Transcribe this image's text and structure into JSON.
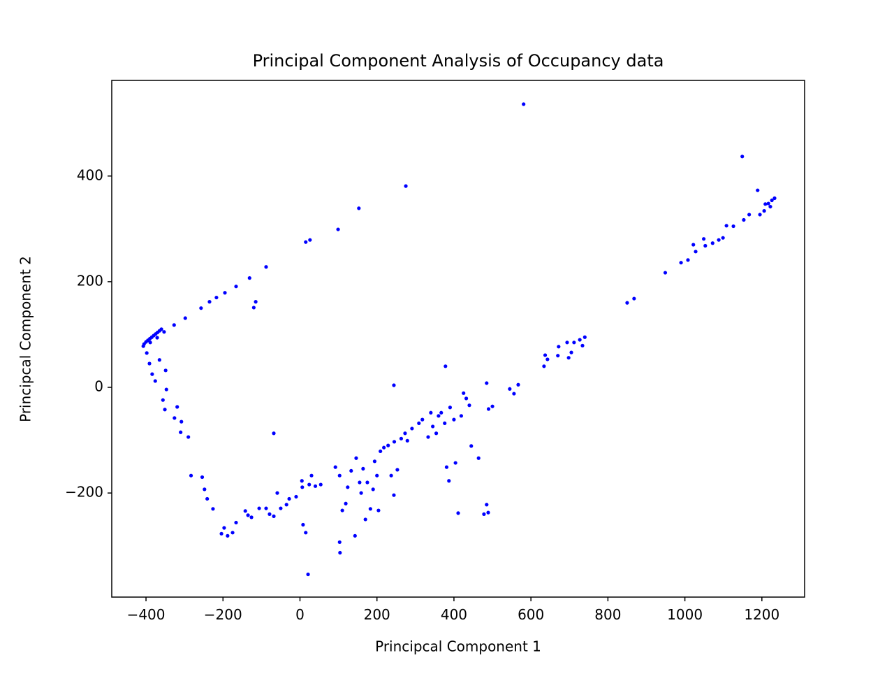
{
  "chart_data": {
    "type": "scatter",
    "title": "Principal Component Analysis of Occupancy data",
    "xlabel": "Principcal Component 1",
    "ylabel": "Principcal Component 2",
    "color": "#0000ff",
    "xlim": [
      -489,
      1311
    ],
    "ylim": [
      -397,
      581
    ],
    "xticks": [
      {
        "value": -400,
        "label": "−400"
      },
      {
        "value": -200,
        "label": "−200"
      },
      0,
      200,
      400,
      600,
      800,
      1000,
      1200
    ],
    "yticks": [
      {
        "value": -200,
        "label": "−200"
      },
      0,
      200,
      400
    ],
    "x": [
      581,
      1149,
      275,
      153,
      99,
      26,
      15,
      -88,
      -131,
      -115,
      -120,
      -166,
      -195,
      -217,
      -235,
      -257,
      -298,
      -327,
      -353,
      -371,
      -389,
      -405,
      -400,
      -395,
      -390,
      -385,
      -380,
      -375,
      -370,
      -365,
      -360,
      -407,
      -398,
      -391,
      -384,
      -376,
      -365,
      -349,
      -347,
      -356,
      -351,
      -326,
      -319,
      -308,
      -310,
      -290,
      -283,
      -254,
      -248,
      -241,
      -226,
      -204,
      -197,
      -188,
      -175,
      -166,
      -135,
      -142,
      -126,
      -106,
      -88,
      -79,
      -68,
      -68,
      -59,
      -50,
      -35,
      -28,
      -10,
      5,
      6,
      24,
      30,
      40,
      54,
      8,
      15,
      21,
      103,
      104,
      143,
      92,
      103,
      110,
      119,
      124,
      133,
      146,
      155,
      159,
      164,
      170,
      175,
      183,
      190,
      194,
      200,
      204,
      209,
      218,
      229,
      237,
      244,
      253,
      245,
      263,
      273,
      279,
      291,
      309,
      318,
      333,
      340,
      345,
      354,
      360,
      367,
      376,
      381,
      390,
      387,
      400,
      404,
      411,
      419,
      425,
      432,
      440,
      445,
      464,
      378,
      485,
      485,
      478,
      489,
      490,
      500,
      545,
      556,
      567,
      244,
      634,
      637,
      643,
      672,
      670,
      694,
      698,
      705,
      712,
      727,
      734,
      740,
      850,
      868,
      949,
      990,
      1008,
      1022,
      1028,
      1049,
      1053,
      1072,
      1088,
      1099,
      1108,
      1126,
      1153,
      1167,
      1189,
      1195,
      1206,
      1209,
      1217,
      1222,
      1226,
      1233
    ],
    "values": [
      536,
      437,
      381,
      339,
      299,
      279,
      275,
      228,
      207,
      162,
      151,
      191,
      179,
      170,
      162,
      150,
      131,
      118,
      105,
      94,
      85,
      82,
      86,
      89,
      92,
      95,
      98,
      101,
      104,
      107,
      110,
      78,
      65,
      45,
      25,
      12,
      52,
      32,
      -4,
      -24,
      -42,
      -58,
      -37,
      -65,
      -85,
      -94,
      -167,
      -170,
      -193,
      -211,
      -230,
      -277,
      -266,
      -281,
      -275,
      -256,
      -242,
      -234,
      -246,
      -229,
      -229,
      -240,
      -244,
      -87,
      -200,
      -229,
      -222,
      -211,
      -207,
      -177,
      -189,
      -184,
      -167,
      -187,
      -184,
      -260,
      -275,
      -354,
      -293,
      -313,
      -281,
      -151,
      -167,
      -233,
      -220,
      -189,
      -158,
      -134,
      -180,
      -200,
      -154,
      -250,
      -180,
      -230,
      -193,
      -140,
      -167,
      -233,
      -121,
      -114,
      -110,
      -167,
      -204,
      -156,
      -103,
      -97,
      -87,
      -101,
      -78,
      -68,
      -61,
      -94,
      -48,
      -74,
      -87,
      -54,
      -48,
      -68,
      -151,
      -38,
      -177,
      -61,
      -143,
      -238,
      -54,
      -11,
      -21,
      -34,
      -111,
      -134,
      40,
      8,
      -222,
      -240,
      -237,
      -41,
      -36,
      -3,
      -12,
      5,
      4,
      40,
      61,
      53,
      77,
      60,
      85,
      56,
      66,
      85,
      90,
      79,
      95,
      160,
      168,
      217,
      236,
      241,
      270,
      257,
      281,
      268,
      273,
      279,
      283,
      306,
      305,
      317,
      327,
      373,
      327,
      334,
      347,
      348,
      342,
      354,
      358
    ]
  }
}
